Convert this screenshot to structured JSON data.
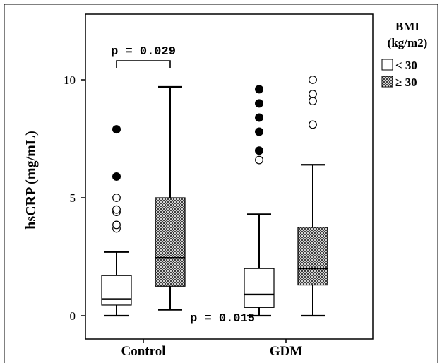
{
  "chart_data": {
    "type": "box",
    "ylabel": "hsCRP (mg/mL)",
    "ylim": [
      -0.6,
      12.8
    ],
    "yticks": [
      0,
      5,
      10
    ],
    "categories": [
      "Control",
      "GDM"
    ],
    "legend": {
      "title_line1": "BMI",
      "title_line2": "(kg/m2)",
      "placement": "right",
      "entries": [
        {
          "name": "< 30",
          "fill": "white"
        },
        {
          "name": "≥ 30",
          "fill": "crosshatch"
        }
      ]
    },
    "series": [
      {
        "name": "< 30",
        "boxes": [
          {
            "category": "Control",
            "min": 0.0,
            "q1": 0.45,
            "median": 0.7,
            "q3": 1.7,
            "max": 2.7,
            "outliers": [
              3.7,
              3.85,
              4.4,
              4.5,
              5.0
            ],
            "extremes": [
              5.9,
              7.9
            ]
          },
          {
            "category": "GDM",
            "min": 0.0,
            "q1": 0.35,
            "median": 0.9,
            "q3": 2.0,
            "max": 4.3,
            "outliers": [
              6.6
            ],
            "extremes": [
              7.0,
              7.8,
              8.4,
              9.0,
              9.6
            ]
          }
        ]
      },
      {
        "name": "≥ 30",
        "boxes": [
          {
            "category": "Control",
            "min": 0.25,
            "q1": 1.25,
            "median": 2.45,
            "q3": 5.0,
            "max": 9.7,
            "outliers": [],
            "extremes": []
          },
          {
            "category": "GDM",
            "min": 0.0,
            "q1": 1.3,
            "median": 2.0,
            "q3": 3.75,
            "max": 6.4,
            "outliers": [
              8.1,
              9.1,
              9.4,
              10.0
            ],
            "extremes": []
          }
        ]
      }
    ],
    "annotations": [
      {
        "text": "p = 0.029",
        "bracket": true,
        "category": "Control"
      },
      {
        "text": "p = 0.015",
        "bracket": false,
        "category": "between"
      }
    ],
    "grid": false
  }
}
